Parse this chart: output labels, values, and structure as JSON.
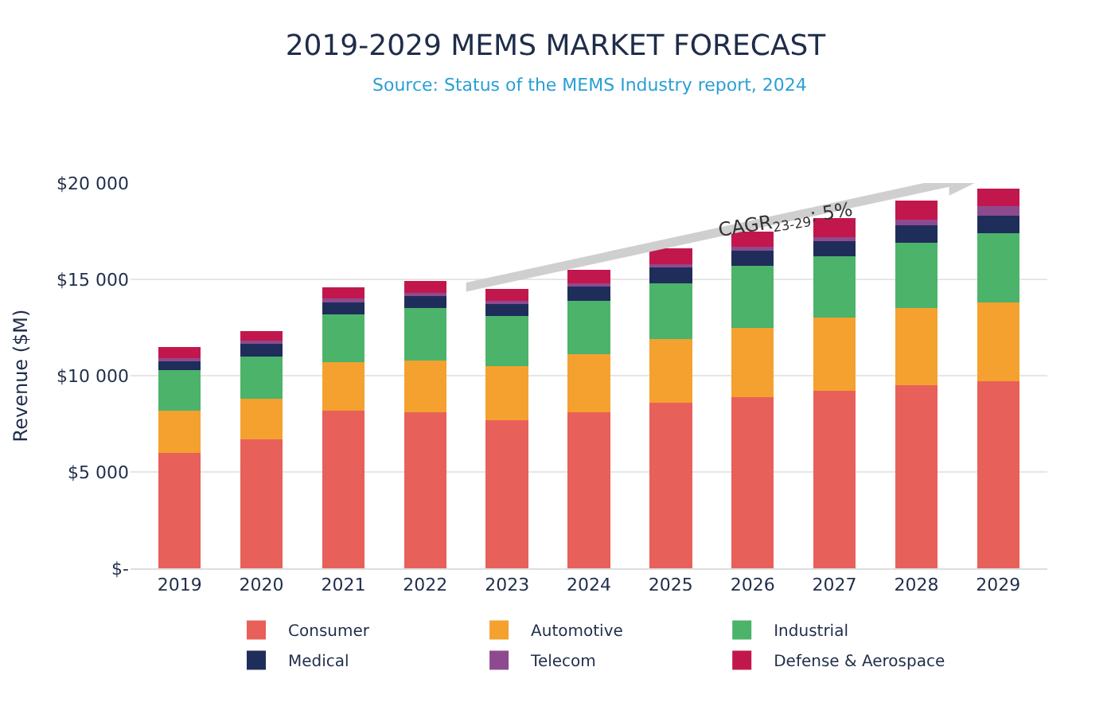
{
  "chart_data": {
    "type": "bar",
    "title": "2019-2029 MEMS MARKET FORECAST",
    "subtitle": "Source: Status of the MEMS Industry report, 2024",
    "ylabel": "Revenue ($M)",
    "categories": [
      "2019",
      "2020",
      "2021",
      "2022",
      "2023",
      "2024",
      "2025",
      "2026",
      "2027",
      "2028",
      "2029"
    ],
    "stacked": true,
    "grid": "y",
    "legend": "bottom",
    "ylim": [
      0,
      20000
    ],
    "yticks": [
      {
        "value": 0,
        "label": "$-"
      },
      {
        "value": 5000,
        "label": "$5 000"
      },
      {
        "value": 10000,
        "label": "$10 000"
      },
      {
        "value": 15000,
        "label": "$15 000"
      },
      {
        "value": 20000,
        "label": "$20 000"
      }
    ],
    "annotations": [
      "CAGR$_{23-29}$: 5%"
    ],
    "series": [
      {
        "name": "Consumer",
        "color": "#e8605a",
        "values": [
          6000,
          6700,
          8200,
          8100,
          7700,
          8100,
          8600,
          8900,
          9200,
          9500,
          9700
        ]
      },
      {
        "name": "Automotive",
        "color": "#f4a12f",
        "values": [
          2200,
          2100,
          2500,
          2700,
          2800,
          3000,
          3300,
          3600,
          3800,
          4000,
          4100
        ]
      },
      {
        "name": "Industrial",
        "color": "#4cb36a",
        "values": [
          2100,
          2200,
          2500,
          2700,
          2600,
          2800,
          2900,
          3200,
          3200,
          3400,
          3600
        ]
      },
      {
        "name": "Medical",
        "color": "#1f2d5a",
        "values": [
          500,
          700,
          600,
          700,
          700,
          800,
          800,
          800,
          800,
          900,
          900
        ]
      },
      {
        "name": "Telecom",
        "color": "#8e4a8f",
        "values": [
          100,
          100,
          200,
          100,
          100,
          100,
          200,
          200,
          200,
          300,
          500
        ]
      },
      {
        "name": "Defense & Aerospace",
        "color": "#c2174d",
        "values": [
          600,
          500,
          600,
          600,
          600,
          700,
          800,
          800,
          1000,
          1000,
          900
        ]
      }
    ]
  }
}
